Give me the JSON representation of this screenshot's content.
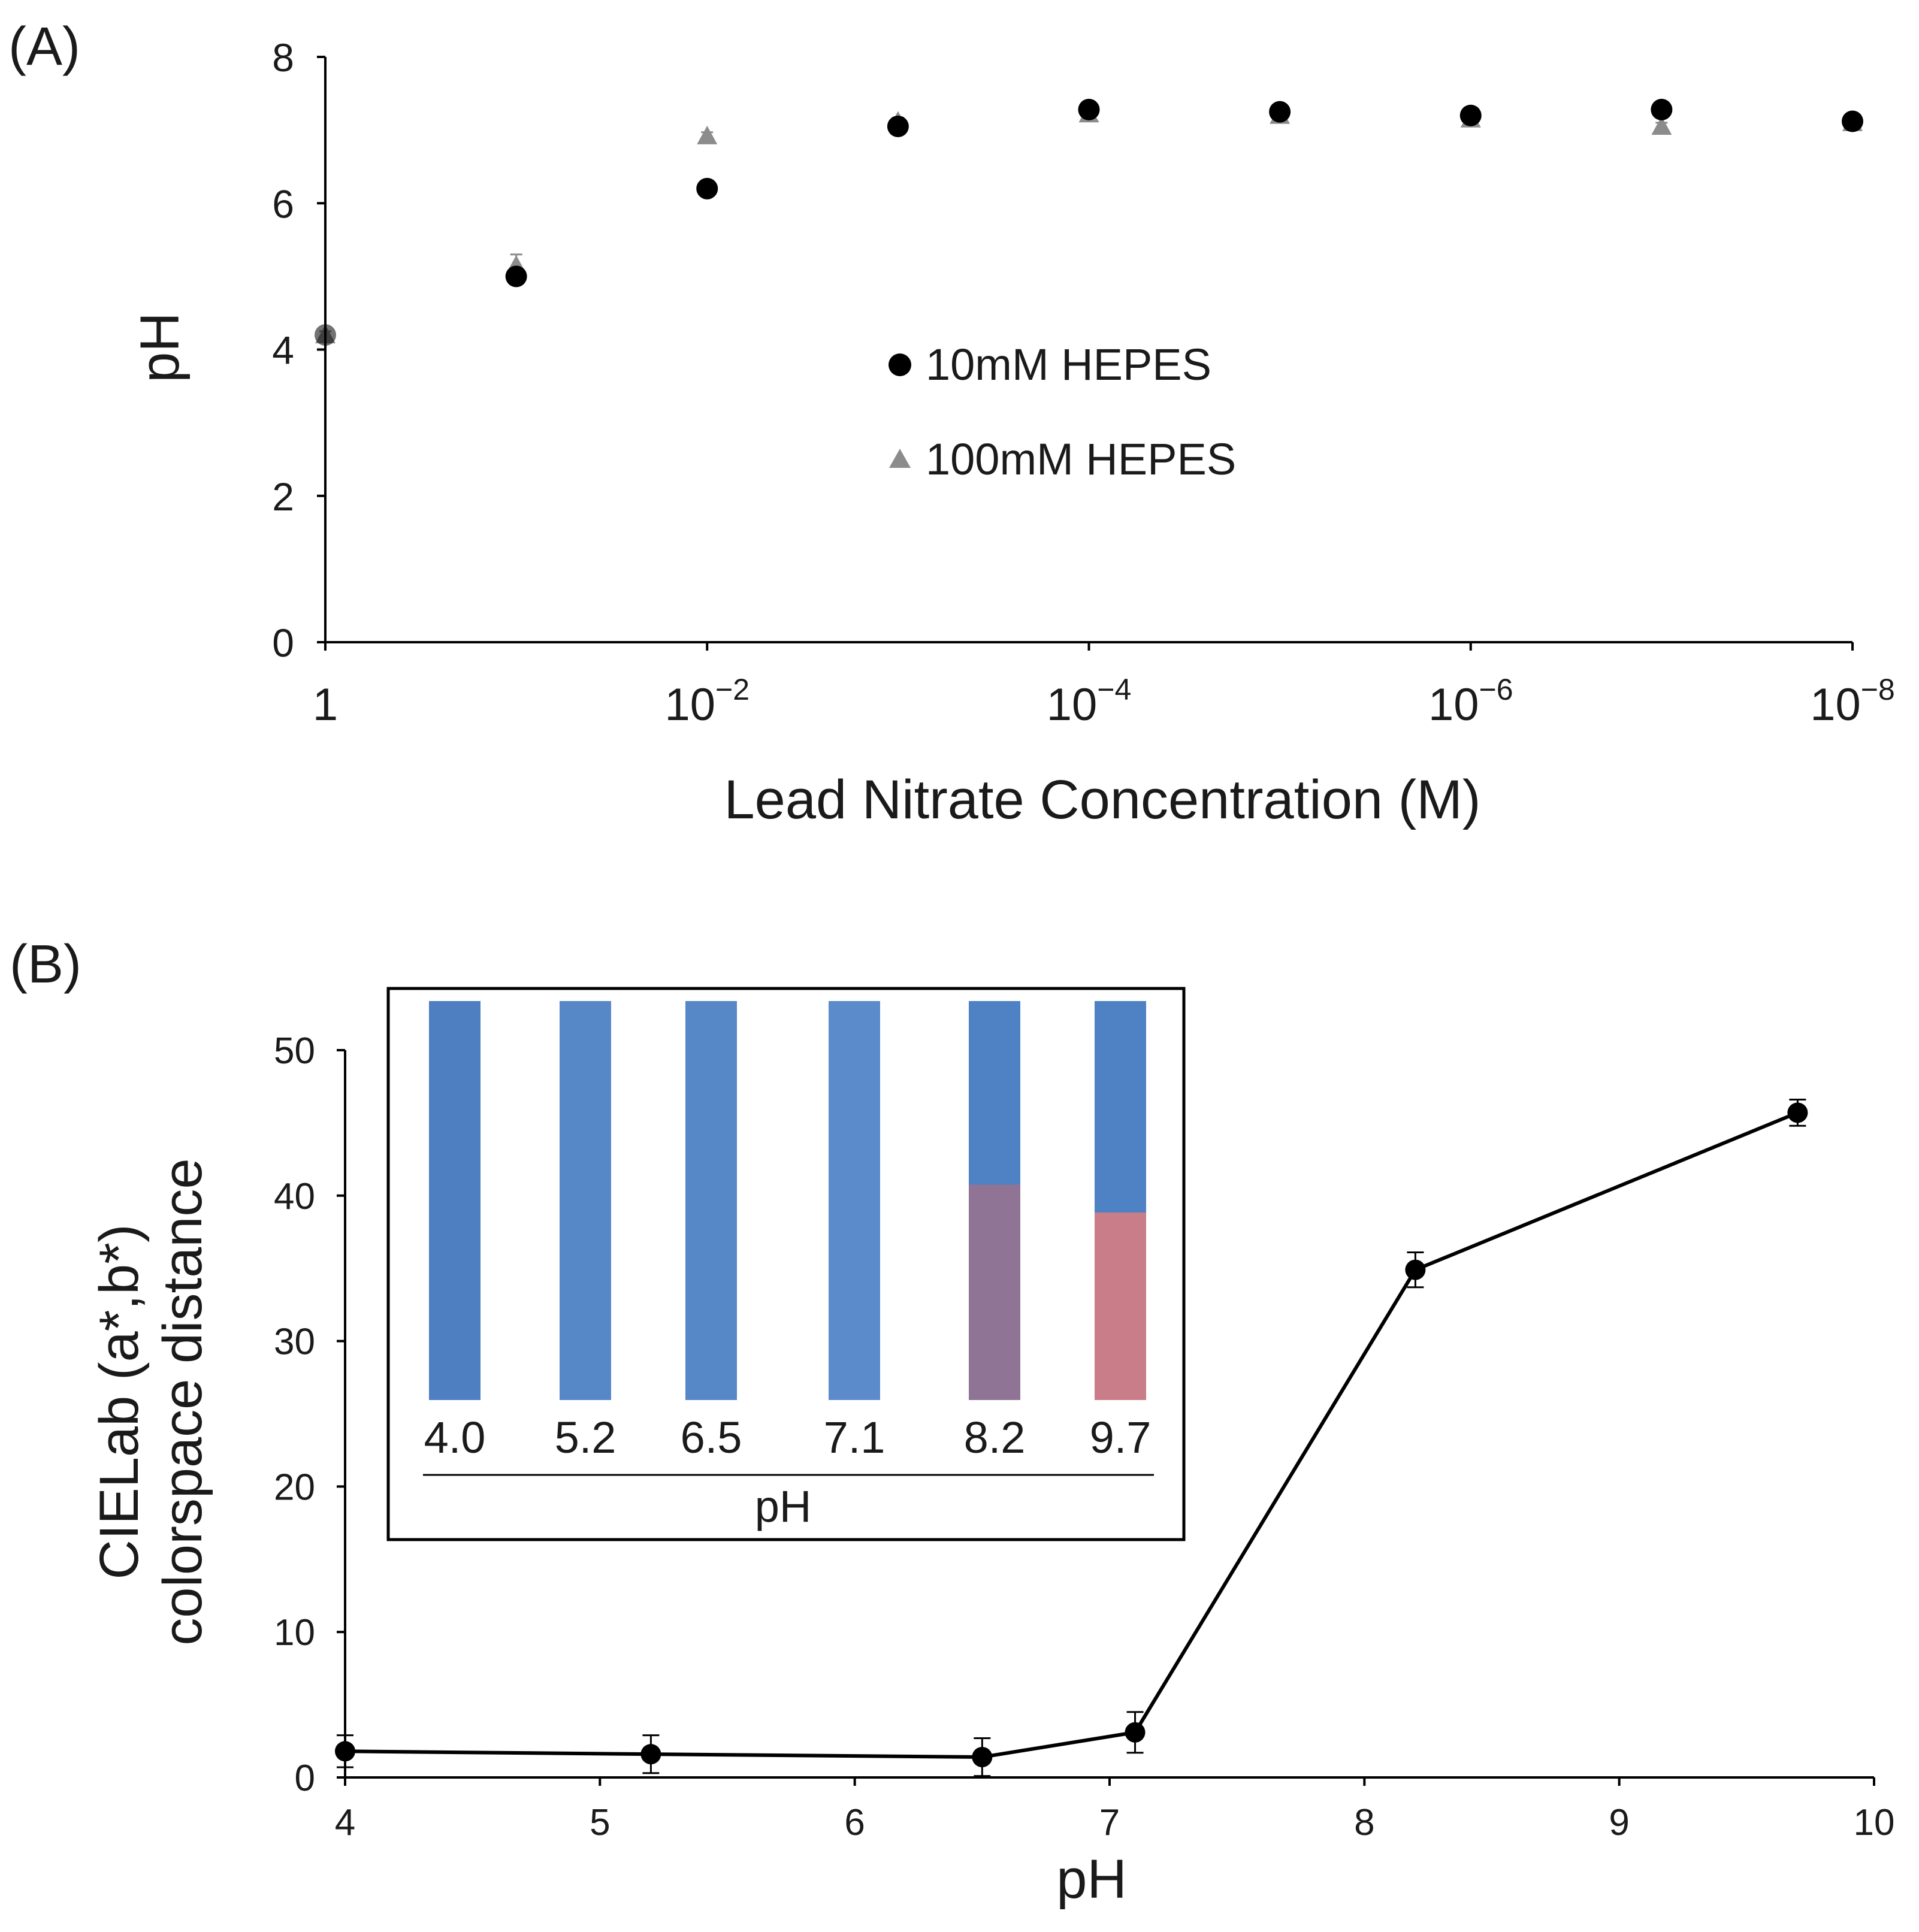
{
  "chart_data": [
    {
      "panel": "(A)",
      "type": "scatter",
      "xlabel": "Lead Nitrate Concentration (M)",
      "ylabel": "pH",
      "x_scale": "log10, reversed",
      "xlim": [
        1,
        1e-08
      ],
      "ylim": [
        0,
        8
      ],
      "x_ticks": [
        {
          "value": 1,
          "base": "1",
          "exp": ""
        },
        {
          "value": 0.01,
          "base": "10",
          "exp": "−2"
        },
        {
          "value": 0.0001,
          "base": "10",
          "exp": "−4"
        },
        {
          "value": 1e-06,
          "base": "10",
          "exp": "−6"
        },
        {
          "value": 1e-08,
          "base": "10",
          "exp": "−8"
        }
      ],
      "y_ticks": [
        "0",
        "2",
        "4",
        "6",
        "8"
      ],
      "x": [
        1,
        0.1,
        0.01,
        0.001,
        0.0001,
        1e-05,
        1e-06,
        1e-07,
        1e-08
      ],
      "series": [
        {
          "name": "10mM HEPES",
          "marker": "circle",
          "color": "#000000",
          "values": [
            4.2,
            5.0,
            6.2,
            7.05,
            7.28,
            7.25,
            7.2,
            7.28,
            7.12
          ],
          "errors": [
            0.05,
            0.05,
            0.05,
            0.05,
            0.05,
            0.05,
            0.05,
            0.05,
            0.05
          ]
        },
        {
          "name": "100mM HEPES",
          "marker": "triangle",
          "color": "#8c8c8c",
          "values": [
            4.2,
            5.15,
            6.92,
            7.12,
            7.22,
            7.2,
            7.15,
            7.05,
            7.1
          ],
          "errors": [
            0.05,
            0.15,
            0.05,
            0.05,
            0.05,
            0.05,
            0.05,
            0.05,
            0.05
          ]
        }
      ],
      "legend": "center"
    },
    {
      "panel": "(B)",
      "type": "line",
      "xlabel": "pH",
      "ylabel_line1": "CIELab (a*,b*)",
      "ylabel_line2": "colorspace distance",
      "xlim": [
        4,
        10
      ],
      "ylim": [
        0,
        50
      ],
      "x_ticks": [
        "4",
        "5",
        "6",
        "7",
        "8",
        "9",
        "10"
      ],
      "y_ticks": [
        "0",
        "10",
        "20",
        "30",
        "40",
        "50"
      ],
      "x": [
        4.0,
        5.2,
        6.5,
        7.1,
        8.2,
        9.7
      ],
      "series": [
        {
          "name": "colorspace distance",
          "color": "#000000",
          "values": [
            1.8,
            1.6,
            1.4,
            3.1,
            34.9,
            45.7
          ],
          "errors": [
            1.1,
            1.3,
            1.3,
            1.4,
            1.2,
            0.9
          ]
        }
      ],
      "inset": {
        "xlabel": "pH",
        "strips": [
          {
            "label": "4.0",
            "top_color": "#4d7fc1",
            "bottom_color": "#4d7fc1",
            "red_fraction": 0
          },
          {
            "label": "5.2",
            "top_color": "#5688c8",
            "bottom_color": "#5688c8",
            "red_fraction": 0
          },
          {
            "label": "6.5",
            "top_color": "#5688c8",
            "bottom_color": "#5688c8",
            "red_fraction": 0
          },
          {
            "label": "7.1",
            "top_color": "#5b8bcb",
            "bottom_color": "#5b8bcb",
            "red_fraction": 0
          },
          {
            "label": "8.2",
            "top_color": "#4f82c4",
            "bottom_color": "#8f7495",
            "red_fraction": 0.54
          },
          {
            "label": "9.7",
            "top_color": "#4f82c4",
            "bottom_color": "#c97d88",
            "red_fraction": 0.47
          }
        ]
      }
    }
  ]
}
